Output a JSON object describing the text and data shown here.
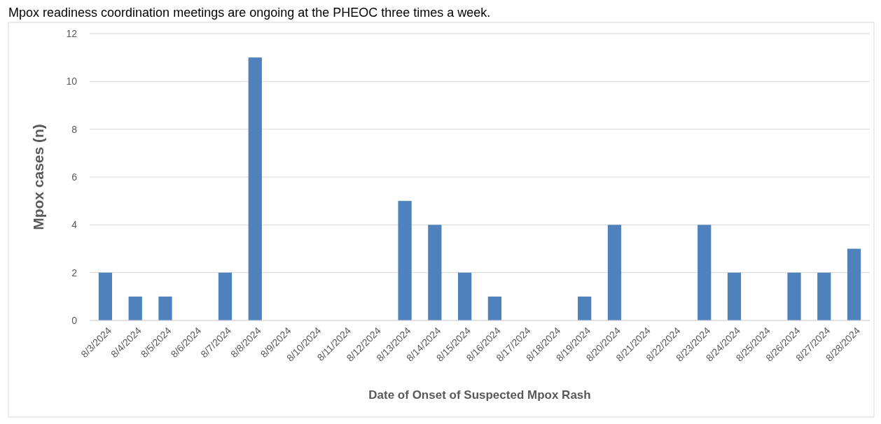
{
  "chart_data": {
    "type": "bar",
    "xlabel": "Date of Onset of Suspected Mpox Rash",
    "ylabel": "Mpox cases (n)",
    "annotations": [
      "Mpox readiness coordination meetings are ongoing at the PHEOC three times a week."
    ],
    "categories": [
      "8/3/2024",
      "8/4/2024",
      "8/5/2024",
      "8/6/2024",
      "8/7/2024",
      "8/8/2024",
      "8/9/2024",
      "8/10/2024",
      "8/11/2024",
      "8/12/2024",
      "8/13/2024",
      "8/14/2024",
      "8/15/2024",
      "8/16/2024",
      "8/17/2024",
      "8/18/2024",
      "8/19/2024",
      "8/20/2024",
      "8/21/2024",
      "8/22/2024",
      "8/23/2024",
      "8/24/2024",
      "8/25/2024",
      "8/26/2024",
      "8/27/2024",
      "8/28/2024"
    ],
    "values": [
      2,
      1,
      1,
      0,
      2,
      11,
      0,
      0,
      0,
      0,
      5,
      4,
      2,
      1,
      0,
      0,
      1,
      4,
      0,
      0,
      4,
      2,
      0,
      2,
      2,
      3
    ],
    "color": "#4f81bd",
    "ylim": [
      0,
      12
    ],
    "yticks": [
      0,
      2,
      4,
      6,
      8,
      10,
      12
    ],
    "grid": "y"
  }
}
